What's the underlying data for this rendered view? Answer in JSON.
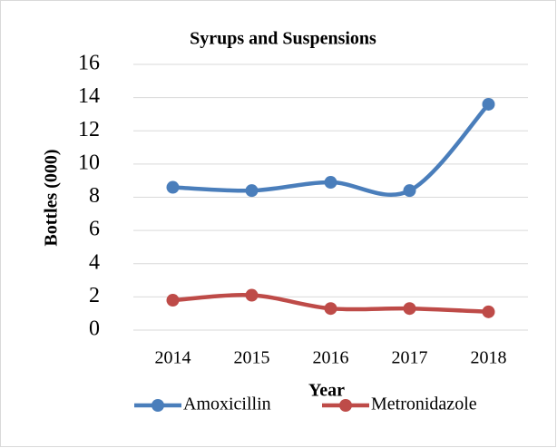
{
  "chart_data": {
    "type": "line",
    "title": "Syrups and Suspensions",
    "x_label": "Year",
    "y_label": "Bottles (000)",
    "categories": [
      "2014",
      "2015",
      "2016",
      "2017",
      "2018"
    ],
    "series": [
      {
        "name": "Amoxicillin",
        "color": "#4a7ebb",
        "values": [
          8.6,
          8.4,
          8.9,
          8.4,
          13.6
        ]
      },
      {
        "name": "Metronidazole",
        "color": "#be4b48",
        "values": [
          1.8,
          2.1,
          1.3,
          1.3,
          1.1
        ]
      }
    ],
    "ylim": [
      0,
      16
    ],
    "yticks": [
      0,
      2,
      4,
      6,
      8,
      10,
      12,
      14,
      16
    ],
    "grid": true,
    "legend": "bottom"
  }
}
